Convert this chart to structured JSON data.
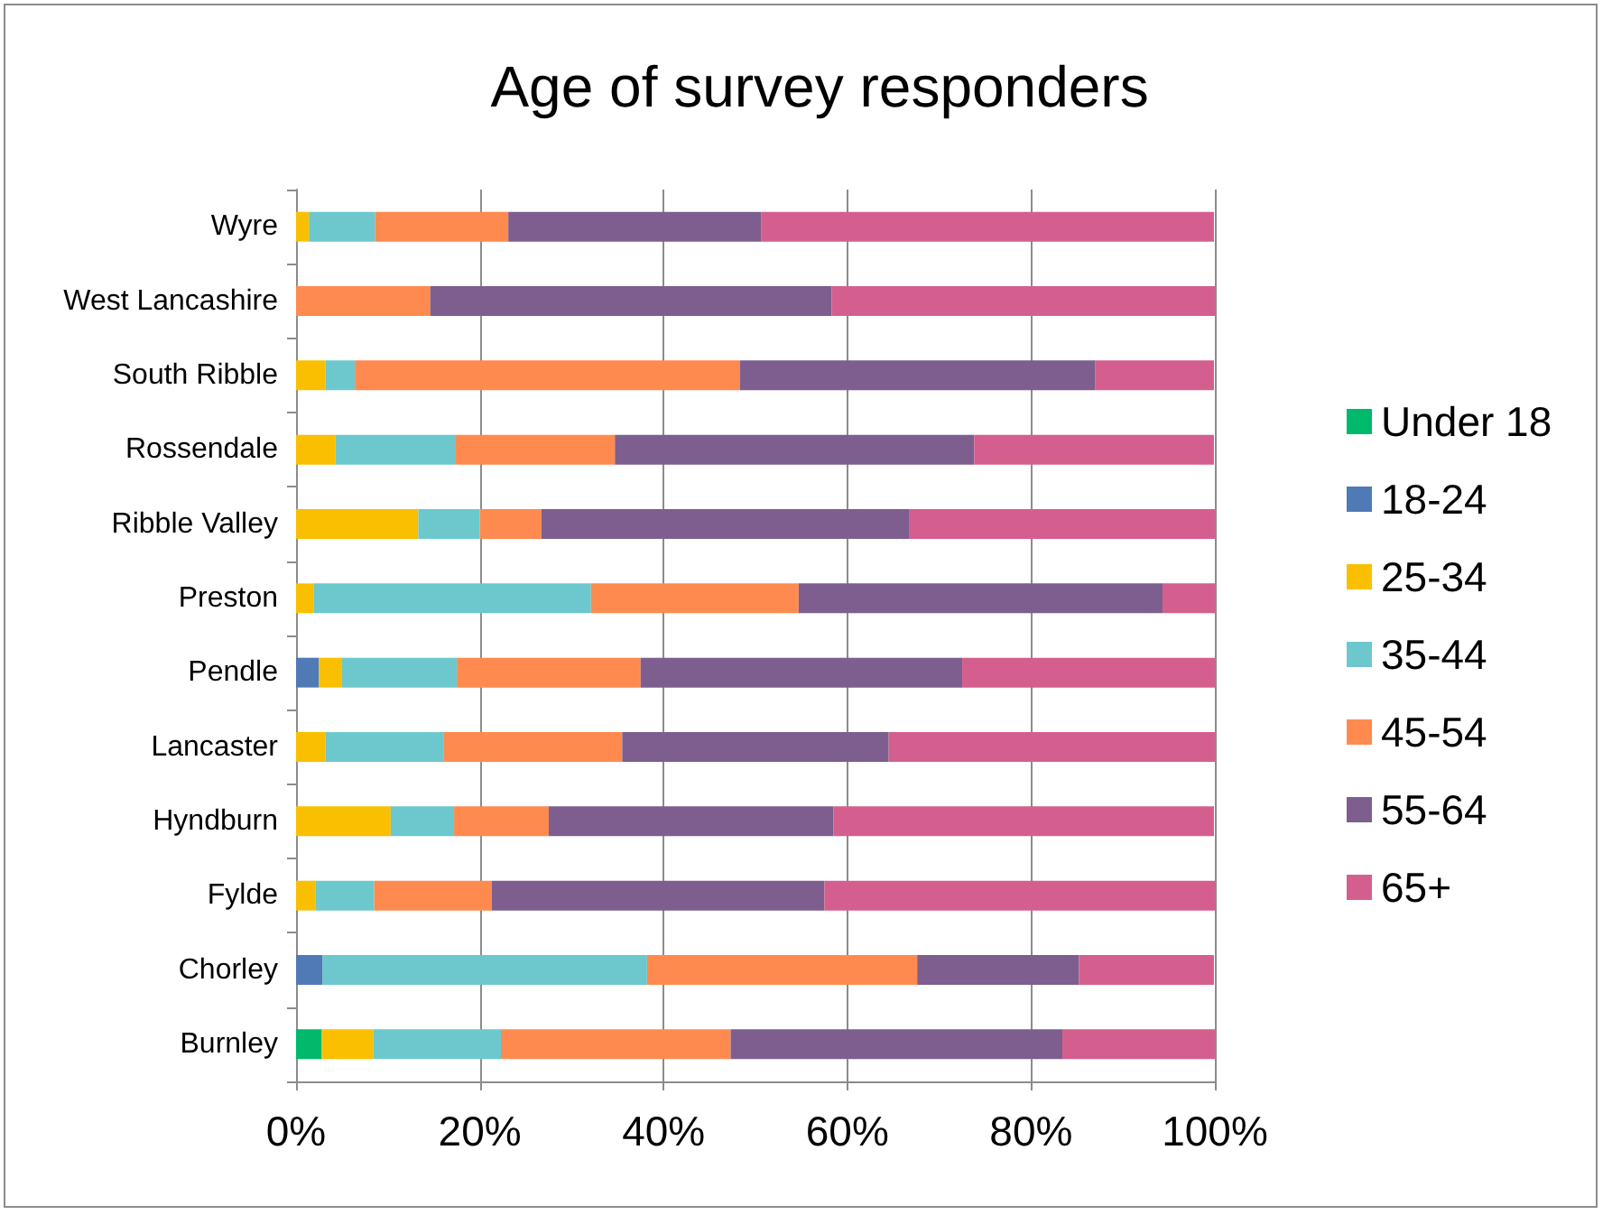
{
  "chart_data": {
    "type": "bar",
    "orientation": "horizontal",
    "stacked": true,
    "title": "Age of survey responders",
    "categories": [
      "Wyre",
      "West Lancashire",
      "South Ribble",
      "Rossendale",
      "Ribble Valley",
      "Preston",
      "Pendle",
      "Lancaster",
      "Hyndburn",
      "Fylde",
      "Chorley",
      "Burnley"
    ],
    "series": [
      {
        "name": "Under 18",
        "color": "#00b96b",
        "values": [
          null,
          null,
          null,
          null,
          null,
          null,
          null,
          null,
          null,
          null,
          null,
          2.8
        ]
      },
      {
        "name": "18-24",
        "color": "#4f7ab5",
        "values": [
          null,
          null,
          null,
          null,
          null,
          null,
          2.5,
          null,
          null,
          null,
          2.9,
          null
        ]
      },
      {
        "name": "25-34",
        "color": "#fabf00",
        "values": [
          1.4,
          null,
          3.2,
          4.3,
          13.3,
          1.9,
          2.5,
          3.2,
          10.3,
          2.1,
          null,
          5.6
        ]
      },
      {
        "name": "35-44",
        "color": "#6cc8cc",
        "values": [
          7.2,
          null,
          3.2,
          13.0,
          6.7,
          30.2,
          12.5,
          12.9,
          6.9,
          6.4,
          35.3,
          13.9
        ]
      },
      {
        "name": "45-54",
        "color": "#ff8a4f",
        "values": [
          14.5,
          14.6,
          41.9,
          17.4,
          6.7,
          22.6,
          20.0,
          19.4,
          10.3,
          12.8,
          29.4,
          25.0
        ]
      },
      {
        "name": "55-64",
        "color": "#7d5e8f",
        "values": [
          27.5,
          43.7,
          38.7,
          39.1,
          40.0,
          39.6,
          35.0,
          29.0,
          31.0,
          36.2,
          17.6,
          36.1
        ]
      },
      {
        "name": "65+",
        "color": "#d45f8e",
        "values": [
          49.3,
          41.7,
          12.9,
          26.1,
          33.3,
          5.7,
          27.5,
          35.5,
          41.4,
          42.5,
          14.7,
          16.6
        ]
      }
    ],
    "xlim": [
      0,
      100
    ],
    "xticks": [
      {
        "value": 0,
        "label": "0%"
      },
      {
        "value": 20,
        "label": "20%"
      },
      {
        "value": 40,
        "label": "40%"
      },
      {
        "value": 60,
        "label": "60%"
      },
      {
        "value": 80,
        "label": "80%"
      },
      {
        "value": 100,
        "label": "100%"
      }
    ],
    "grid": "x",
    "legend": "right"
  }
}
